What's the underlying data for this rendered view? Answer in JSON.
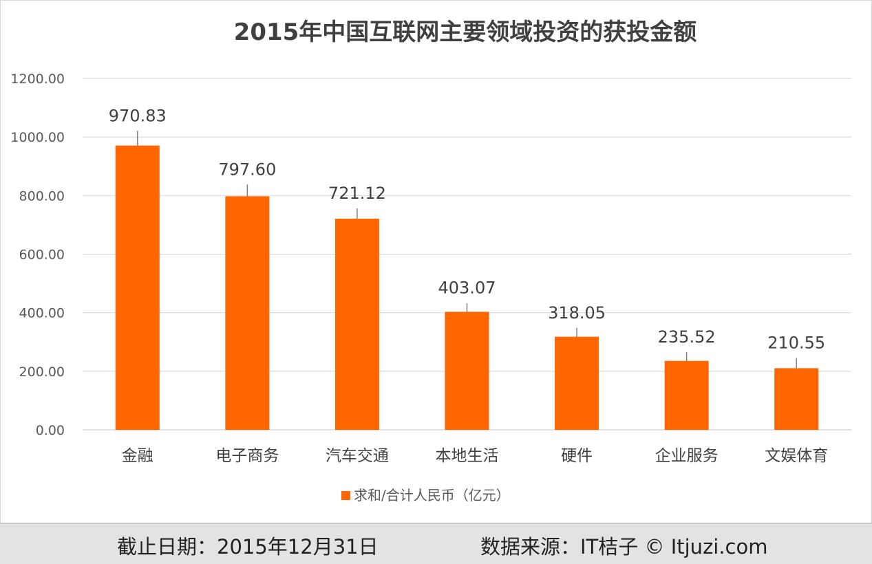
{
  "footer": {
    "cutoff_date": "截止日期：2015年12月31日",
    "source": "数据来源：IT桔子 © Itjuzi.com"
  },
  "chart_data": {
    "type": "bar",
    "title": "2015年中国互联网主要领域投资的获投金额",
    "xlabel": "",
    "ylabel": "",
    "categories": [
      "金融",
      "电子商务",
      "汽车交通",
      "本地生活",
      "硬件",
      "企业服务",
      "文娱体育"
    ],
    "series": [
      {
        "name": "求和/合计人民币（亿元）",
        "values": [
          970.83,
          797.6,
          721.12,
          403.07,
          318.05,
          235.52,
          210.55
        ],
        "labels": [
          "970.83",
          "797.60",
          "721.12",
          "403.07",
          "318.05",
          "235.52",
          "210.55"
        ],
        "error": [
          50,
          40,
          35,
          30,
          30,
          30,
          35
        ]
      }
    ],
    "ylim": [
      0,
      1200
    ],
    "yticks": [
      0,
      200,
      400,
      600,
      800,
      1000,
      1200
    ],
    "ytick_labels": [
      "0.00",
      "200.00",
      "400.00",
      "600.00",
      "800.00",
      "1000.00",
      "1200.00"
    ],
    "grid": true,
    "legend": "bottom",
    "colors": {
      "bar": "#ff6600",
      "grid": "#d9d9d9",
      "axis_text": "#595959",
      "title": "#404040",
      "label": "#404040",
      "error": "#7f7f7f"
    }
  }
}
